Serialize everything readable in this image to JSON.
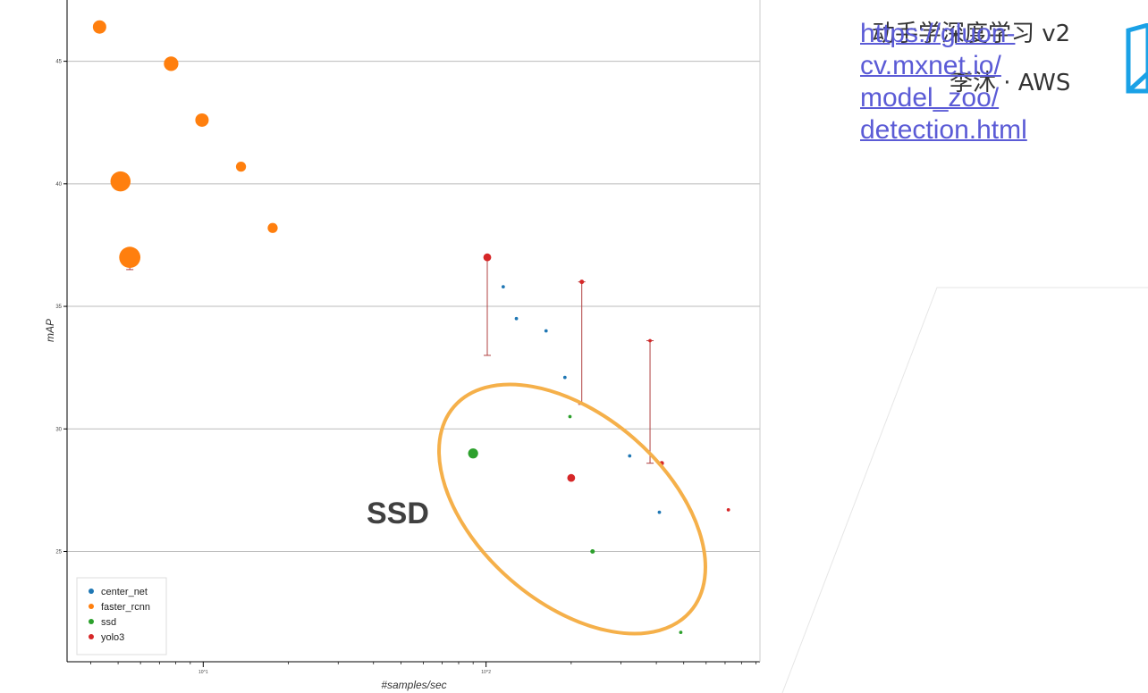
{
  "header": {
    "book_title": "动手学深度学习 v2",
    "author": "李沐 · AWS"
  },
  "link": {
    "lines": [
      "https://gluon-",
      "cv.mxnet.io/",
      "model_zoo/",
      "detection.html"
    ]
  },
  "icons": {
    "book": "book-icon"
  },
  "annotation": {
    "label": "SSD",
    "color": "#f5b04a"
  },
  "chart_data": {
    "type": "scatter",
    "xlabel": "#samples/sec",
    "ylabel": "mAP",
    "xscale": "log",
    "xlim": [
      3.3,
      930
    ],
    "ylim": [
      20.5,
      47.5
    ],
    "y_ticks": [
      25,
      30,
      35,
      40,
      45
    ],
    "x_ticks": [
      {
        "value": 10,
        "label": "10^1"
      },
      {
        "value": 100,
        "label": "10^2"
      }
    ],
    "grid": "horizontal",
    "legend_position": "bottom-left",
    "series": [
      {
        "name": "center_net",
        "color": "#1f77b4",
        "points": [
          {
            "x": 115,
            "y": 35.8,
            "s": 1.5
          },
          {
            "x": 128,
            "y": 34.5,
            "s": 1.5
          },
          {
            "x": 163,
            "y": 34.0,
            "s": 1.5
          },
          {
            "x": 190,
            "y": 32.1,
            "s": 1.5
          },
          {
            "x": 322,
            "y": 28.9,
            "s": 1.5
          },
          {
            "x": 410,
            "y": 26.6,
            "s": 1.5
          }
        ]
      },
      {
        "name": "faster_rcnn",
        "color": "#ff7f0e",
        "points": [
          {
            "x": 4.3,
            "y": 46.4,
            "s": 6
          },
          {
            "x": 7.7,
            "y": 44.9,
            "s": 6.5
          },
          {
            "x": 9.9,
            "y": 42.6,
            "s": 6
          },
          {
            "x": 13.6,
            "y": 40.7,
            "s": 4.5
          },
          {
            "x": 5.1,
            "y": 40.1,
            "s": 9
          },
          {
            "x": 17.6,
            "y": 38.2,
            "s": 4.5
          },
          {
            "x": 5.5,
            "y": 37.0,
            "s": 9.5,
            "err_low": 36.5
          }
        ]
      },
      {
        "name": "ssd",
        "color": "#2ca02c",
        "points": [
          {
            "x": 90,
            "y": 29.0,
            "s": 4.5
          },
          {
            "x": 198,
            "y": 30.5,
            "s": 1.5
          },
          {
            "x": 238,
            "y": 25.0,
            "s": 2
          },
          {
            "x": 488,
            "y": 21.7,
            "s": 1.5
          }
        ]
      },
      {
        "name": "yolo3",
        "color": "#d62728",
        "points": [
          {
            "x": 101,
            "y": 37.0,
            "s": 3.5,
            "err_low": 33.0
          },
          {
            "x": 200,
            "y": 28.0,
            "s": 3.5
          },
          {
            "x": 218,
            "y": 36.0,
            "s": 2,
            "err_low": 31.0
          },
          {
            "x": 380,
            "y": 33.6,
            "s": 1.5,
            "err_low": 28.6
          },
          {
            "x": 418,
            "y": 28.6,
            "s": 2
          },
          {
            "x": 719,
            "y": 26.7,
            "s": 1.5
          }
        ]
      }
    ]
  }
}
